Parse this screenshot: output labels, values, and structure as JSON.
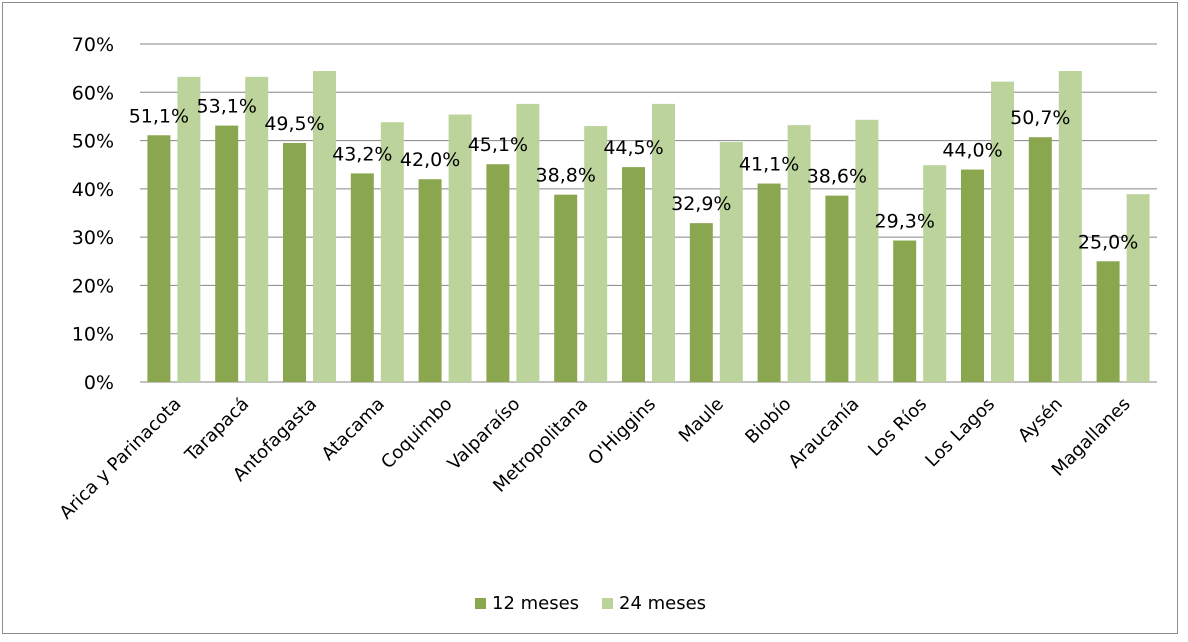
{
  "chart_data": {
    "type": "bar",
    "categories": [
      "Arica y Parinacota",
      "Tarapacá",
      "Antofagasta",
      "Atacama",
      "Coquimbo",
      "Valparaíso",
      "Metropolitana",
      "O'Higgins",
      "Maule",
      "Biobío",
      "Araucanía",
      "Los Ríos",
      "Los Lagos",
      "Aysén",
      "Magallanes"
    ],
    "series": [
      {
        "name": "12 meses",
        "color": "#8aa74f",
        "values": [
          51.1,
          53.1,
          49.5,
          43.2,
          42.0,
          45.1,
          38.8,
          44.5,
          32.9,
          41.1,
          38.6,
          29.3,
          44.0,
          50.7,
          25.0
        ],
        "data_labels": [
          "51,1%",
          "53,1%",
          "49,5%",
          "43,2%",
          "42,0%",
          "45,1%",
          "38,8%",
          "44,5%",
          "32,9%",
          "41,1%",
          "38,6%",
          "29,3%",
          "44,0%",
          "50,7%",
          "25,0%"
        ]
      },
      {
        "name": "24 meses",
        "color": "#bcd49b",
        "values": [
          63.2,
          63.2,
          64.4,
          53.8,
          55.4,
          57.6,
          53.0,
          57.6,
          49.7,
          53.2,
          54.3,
          44.9,
          62.2,
          64.4,
          38.9
        ]
      }
    ],
    "y_ticks": [
      "0%",
      "10%",
      "20%",
      "30%",
      "40%",
      "50%",
      "60%",
      "70%"
    ],
    "ylim": [
      0,
      70
    ],
    "grid": true,
    "legend_position": "bottom"
  }
}
